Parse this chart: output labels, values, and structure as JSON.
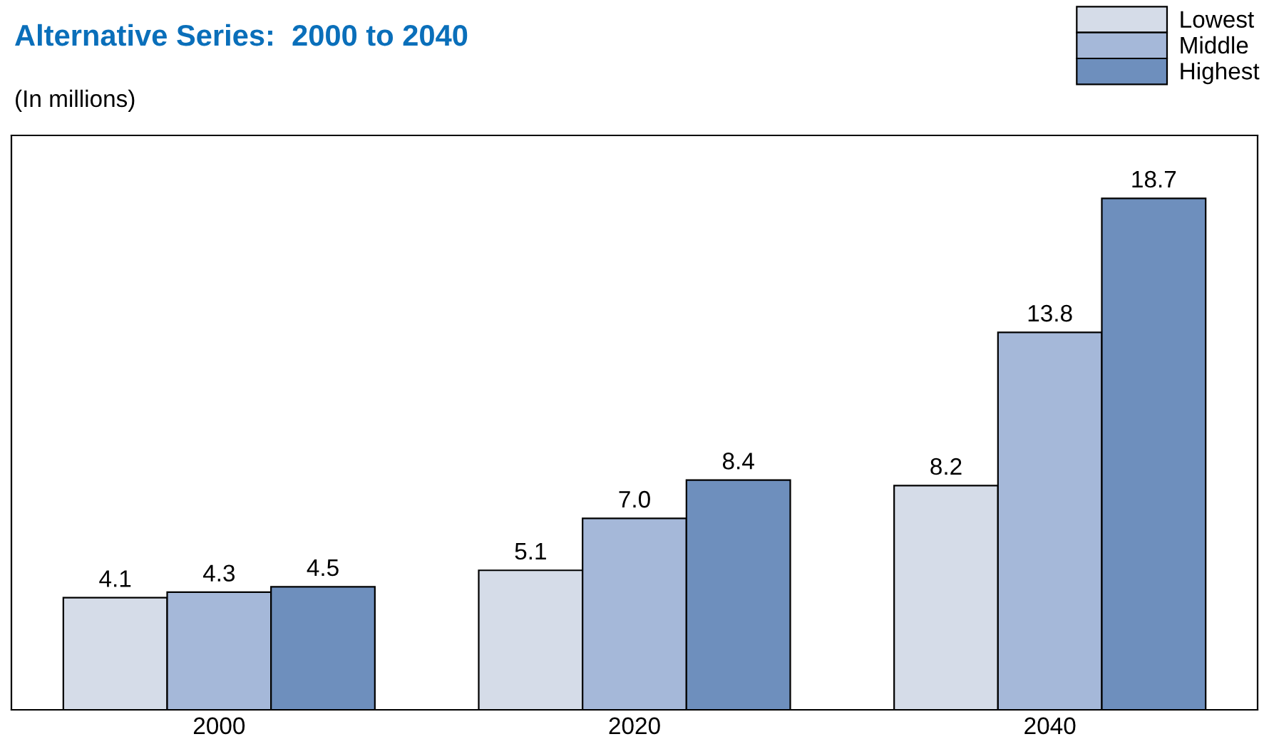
{
  "chart_data": {
    "type": "bar",
    "title": "Alternative Series:  2000 to 2040",
    "subtitle": "(In millions)",
    "categories": [
      "2000",
      "2020",
      "2040"
    ],
    "series": [
      {
        "name": "Lowest",
        "color": "#d5dce8",
        "values": [
          4.1,
          5.1,
          8.2
        ],
        "value_labels": [
          "4.1",
          "5.1",
          "8.2"
        ]
      },
      {
        "name": "Middle",
        "color": "#a5b8d9",
        "values": [
          4.3,
          7.0,
          13.8
        ],
        "value_labels": [
          "4.3",
          "7.0",
          "13.8"
        ]
      },
      {
        "name": "Highest",
        "color": "#6e8fbd",
        "values": [
          4.5,
          8.4,
          18.7
        ],
        "value_labels": [
          "4.5",
          "8.4",
          "18.7"
        ]
      }
    ],
    "ylim": [
      0,
      21
    ],
    "legend": "top right",
    "grid": false,
    "tick_labels": "x"
  }
}
